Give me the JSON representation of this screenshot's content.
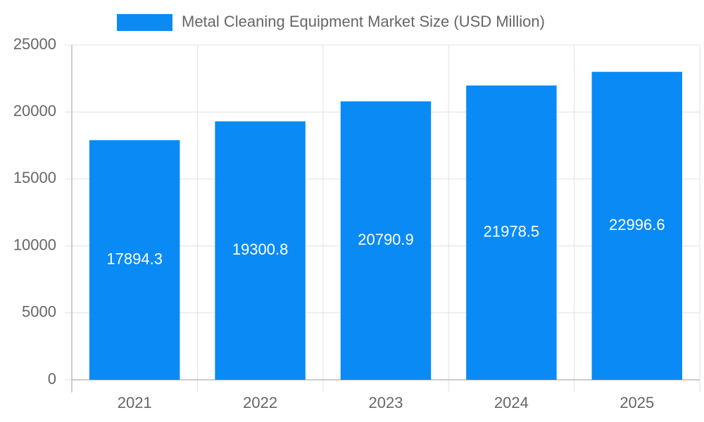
{
  "chart_data": {
    "type": "bar",
    "categories": [
      "2021",
      "2022",
      "2023",
      "2024",
      "2025"
    ],
    "series": [
      {
        "name": "Metal Cleaning Equipment Market Size (USD Million)",
        "color": "#0a8af5",
        "values": [
          17894.3,
          19300.8,
          20790.9,
          21978.5,
          22996.6
        ]
      }
    ],
    "ylim": [
      0,
      25000
    ],
    "yticks": [
      0,
      5000,
      10000,
      15000,
      20000,
      25000
    ],
    "grid": true
  }
}
